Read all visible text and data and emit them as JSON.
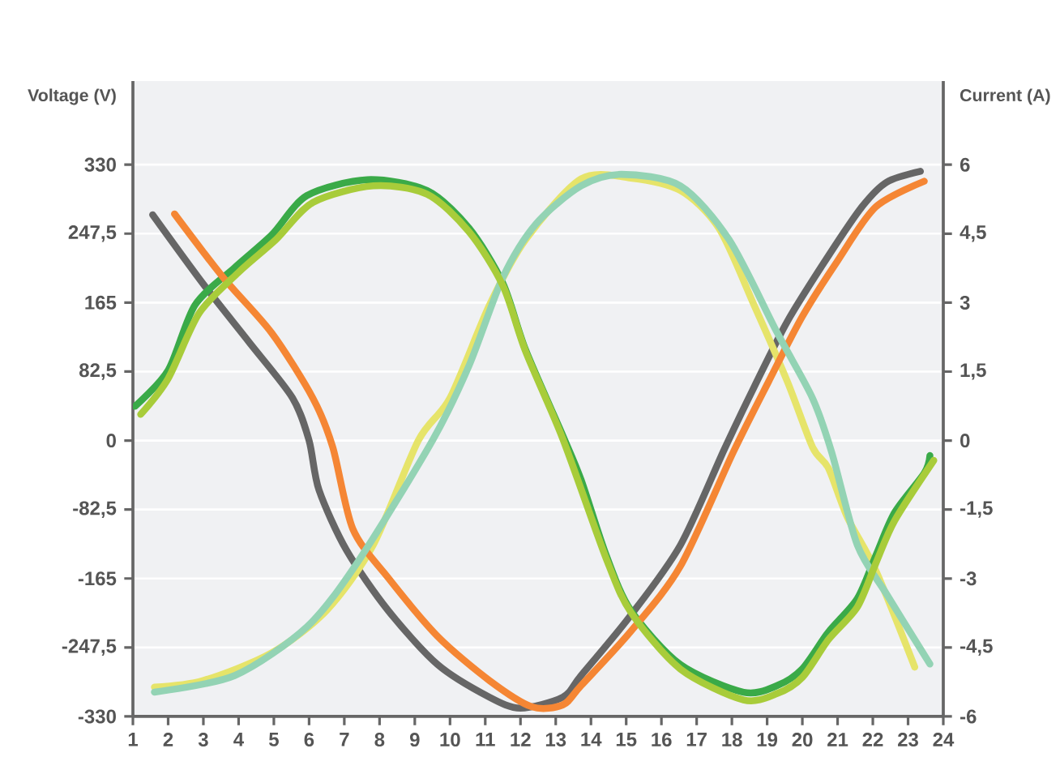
{
  "chart_data": {
    "type": "line",
    "ylabel": "Voltage (V)",
    "y2label": "Current (A)",
    "xlim": [
      1,
      24
    ],
    "xticks": [
      1,
      2,
      3,
      4,
      5,
      6,
      7,
      8,
      9,
      10,
      11,
      12,
      13,
      14,
      15,
      16,
      17,
      18,
      19,
      20,
      21,
      22,
      23,
      24
    ],
    "ylim": [
      -330,
      430
    ],
    "yticks": [
      -330,
      {
        "value": -247.5,
        "label": "-247,5"
      },
      -165,
      {
        "value": -82.5,
        "label": "-82,5"
      },
      0,
      {
        "value": 82.5,
        "label": "82,5"
      },
      165,
      {
        "value": 247.5,
        "label": "247,5"
      },
      330
    ],
    "y2lim": [
      -6,
      7.82
    ],
    "y2ticks": [
      -6,
      {
        "value": -4.5,
        "label": "-4,5"
      },
      -3,
      {
        "value": -1.5,
        "label": "-1,5"
      },
      0,
      {
        "value": 1.5,
        "label": "1,5"
      },
      3,
      {
        "value": 4.5,
        "label": "4,5"
      },
      6
    ],
    "grid": "y",
    "series": [
      {
        "color": "#666666",
        "x": [
          1.56,
          3.0,
          4.31,
          5.53,
          6.0,
          6.28,
          7.06,
          8.24,
          9.65,
          11.12,
          12.0,
          13.2,
          13.72,
          15.13,
          16.54,
          17.79,
          18.63,
          19.58,
          20.74,
          21.68,
          22.39,
          23.35
        ],
        "values": [
          270,
          187,
          117,
          51,
          0,
          -59,
          -131,
          -203,
          -268,
          -307,
          -320,
          -307,
          -281,
          -209,
          -125,
          -10,
          64,
          143,
          221,
          279,
          309,
          322
        ]
      },
      {
        "color": "#f58634",
        "axis": "y2",
        "x": [
          2.18,
          3.56,
          4.94,
          6.11,
          6.67,
          7.24,
          8.24,
          9.65,
          11.12,
          12.32,
          13.2,
          13.72,
          15.13,
          16.54,
          18.04,
          19.04,
          20.0,
          21.0,
          22.08,
          23.46
        ],
        "values": [
          4.93,
          3.55,
          2.34,
          0.92,
          -0.14,
          -1.92,
          -2.98,
          -4.26,
          -5.22,
          -5.79,
          -5.75,
          -5.33,
          -4.15,
          -2.73,
          -0.25,
          1.28,
          2.7,
          3.91,
          5.08,
          5.64
        ]
      },
      {
        "color": "#e6e46a",
        "x": [
          1.61,
          3.0,
          4.94,
          6.5,
          7.82,
          9.1,
          10.0,
          11.12,
          12.14,
          13.72,
          15.13,
          16.54,
          17.63,
          18.63,
          19.58,
          20.29,
          20.74,
          21.28,
          22.09,
          23.19
        ],
        "values": [
          -295,
          -287,
          -254,
          -203,
          -125,
          0,
          51,
          162,
          240,
          313,
          314,
          299,
          254,
          162,
          70,
          -8,
          -33,
          -92,
          -156,
          -271
        ]
      },
      {
        "color": "#93d3b4",
        "axis": "y2",
        "x": [
          1.61,
          3.89,
          5.94,
          7.39,
          9.5,
          10.54,
          11.5,
          12.45,
          13.72,
          14.87,
          16.54,
          17.92,
          19.29,
          20.29,
          20.83,
          21.56,
          22.39,
          23.62
        ],
        "values": [
          -5.47,
          -5.11,
          -4.05,
          -2.63,
          0,
          1.63,
          3.55,
          4.72,
          5.54,
          5.79,
          5.54,
          4.37,
          2.34,
          0.92,
          -0.25,
          -2.27,
          -3.34,
          -4.86
        ]
      },
      {
        "color": "#a8cc3a",
        "axis": "y2",
        "x": [
          1.22,
          2.0,
          2.88,
          4.0,
          5.06,
          6.11,
          7.82,
          9.35,
          10.54,
          11.5,
          12.14,
          13.2,
          14.43,
          15.13,
          16.54,
          18.33,
          19.29,
          20.0,
          20.74,
          21.56,
          22.09,
          22.62,
          23.73
        ],
        "values": [
          0.57,
          1.35,
          2.77,
          3.66,
          4.37,
          5.18,
          5.54,
          5.36,
          4.54,
          3.37,
          1.95,
          0.04,
          -2.56,
          -3.73,
          -4.97,
          -5.64,
          -5.5,
          -5.15,
          -4.33,
          -3.62,
          -2.66,
          -1.74,
          -0.43
        ]
      },
      {
        "color": "#3aaa48",
        "x": [
          1.06,
          2.0,
          2.76,
          3.89,
          4.94,
          5.94,
          7.65,
          9.35,
          10.54,
          11.5,
          12.14,
          13.2,
          13.72,
          14.43,
          15.13,
          16.54,
          18.33,
          19.29,
          20.0,
          20.74,
          21.56,
          22.09,
          22.62,
          23.46,
          23.62
        ],
        "values": [
          41,
          84,
          162,
          207,
          246,
          293,
          312,
          299,
          254,
          188,
          109,
          6,
          -47,
          -137,
          -203,
          -268,
          -301,
          -293,
          -273,
          -229,
          -189,
          -137,
          -86,
          -39,
          -18
        ]
      }
    ]
  }
}
